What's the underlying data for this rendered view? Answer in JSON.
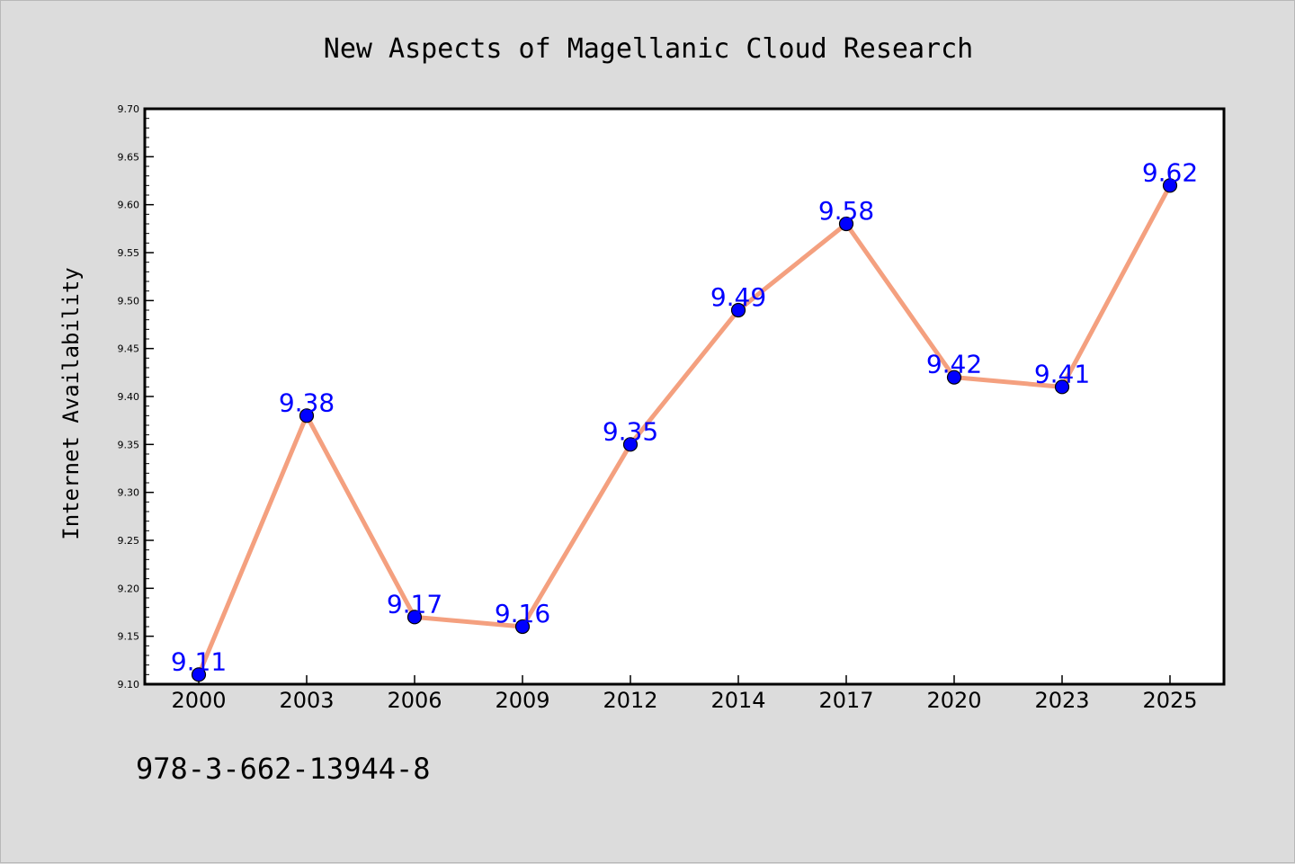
{
  "footer_isbn": "978-3-662-13944-8",
  "colors": {
    "background": "#dcdcdc",
    "plot_area": "#ffffff",
    "line": "#f4a07f",
    "marker": "#0000ff",
    "data_label": "#0000ff",
    "text": "#000000"
  },
  "chart_data": {
    "type": "line",
    "title": "New Aspects of Magellanic Cloud Research",
    "xlabel": "",
    "ylabel": "Internet Availability",
    "categories": [
      "2000",
      "2003",
      "2006",
      "2009",
      "2012",
      "2014",
      "2017",
      "2020",
      "2023",
      "2025"
    ],
    "series": [
      {
        "values": [
          9.11,
          9.38,
          9.17,
          9.16,
          9.35,
          9.49,
          9.58,
          9.42,
          9.41,
          9.62
        ]
      }
    ],
    "data_labels": [
      "9.11",
      "9.38",
      "9.17",
      "9.16",
      "9.35",
      "9.49",
      "9.58",
      "9.42",
      "9.41",
      "9.62"
    ],
    "ylim": [
      9.1,
      9.7
    ],
    "yticks": [
      "9.10",
      "9.15",
      "9.20",
      "9.25",
      "9.30",
      "9.35",
      "9.40",
      "9.45",
      "9.50",
      "9.55",
      "9.60",
      "9.65",
      "9.70"
    ],
    "grid": false,
    "legend": "none"
  }
}
